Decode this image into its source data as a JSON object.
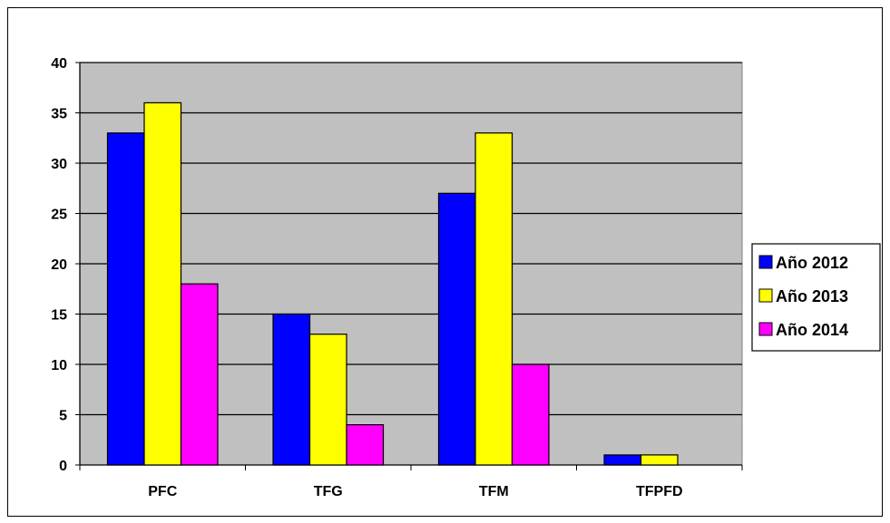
{
  "chart_data": {
    "type": "bar",
    "categories": [
      "PFC",
      "TFG",
      "TFM",
      "TFPFD"
    ],
    "series": [
      {
        "name": "Año 2012",
        "color": "#0000ff",
        "values": [
          33,
          15,
          27,
          1
        ]
      },
      {
        "name": "Año 2013",
        "color": "#ffff00",
        "values": [
          36,
          13,
          33,
          1
        ]
      },
      {
        "name": "Año 2014",
        "color": "#ff00ff",
        "values": [
          18,
          4,
          10,
          0
        ]
      }
    ],
    "yticks": [
      "0",
      "5",
      "10",
      "15",
      "20",
      "25",
      "30",
      "35",
      "40"
    ],
    "ylim": [
      0,
      40
    ],
    "grid": true,
    "legend_position": "right",
    "plot_background": "#c0c0c0"
  }
}
